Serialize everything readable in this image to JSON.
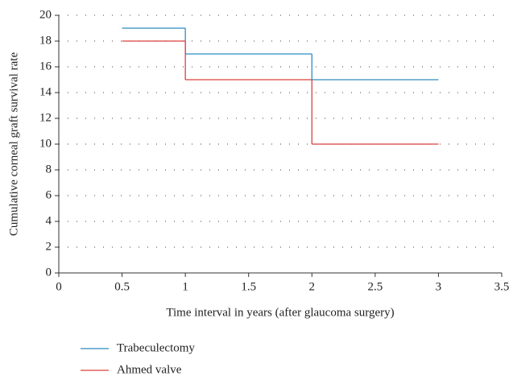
{
  "chart_data": {
    "type": "step",
    "step": "post",
    "x_label": "Time interval in years (after glaucoma surgery)",
    "y_label": "Cumulative corneal graft survival rate",
    "x": [
      0.5,
      1,
      2,
      3
    ],
    "series": [
      {
        "name": "Trabeculectomy",
        "color": "#2e8bc0",
        "values": [
          19,
          17,
          15,
          15
        ]
      },
      {
        "name": "Ahmed valve",
        "color": "#d9413f",
        "values": [
          18,
          15,
          10,
          10
        ]
      }
    ],
    "xlim": [
      0,
      3.5
    ],
    "xticks": [
      0,
      0.5,
      1,
      1.5,
      2,
      2.5,
      3,
      3.5
    ],
    "ylim": [
      0,
      20
    ],
    "yticks": [
      0,
      2,
      4,
      6,
      8,
      10,
      12,
      14,
      16,
      18,
      20
    ],
    "grid": true,
    "legend": "bottom"
  }
}
